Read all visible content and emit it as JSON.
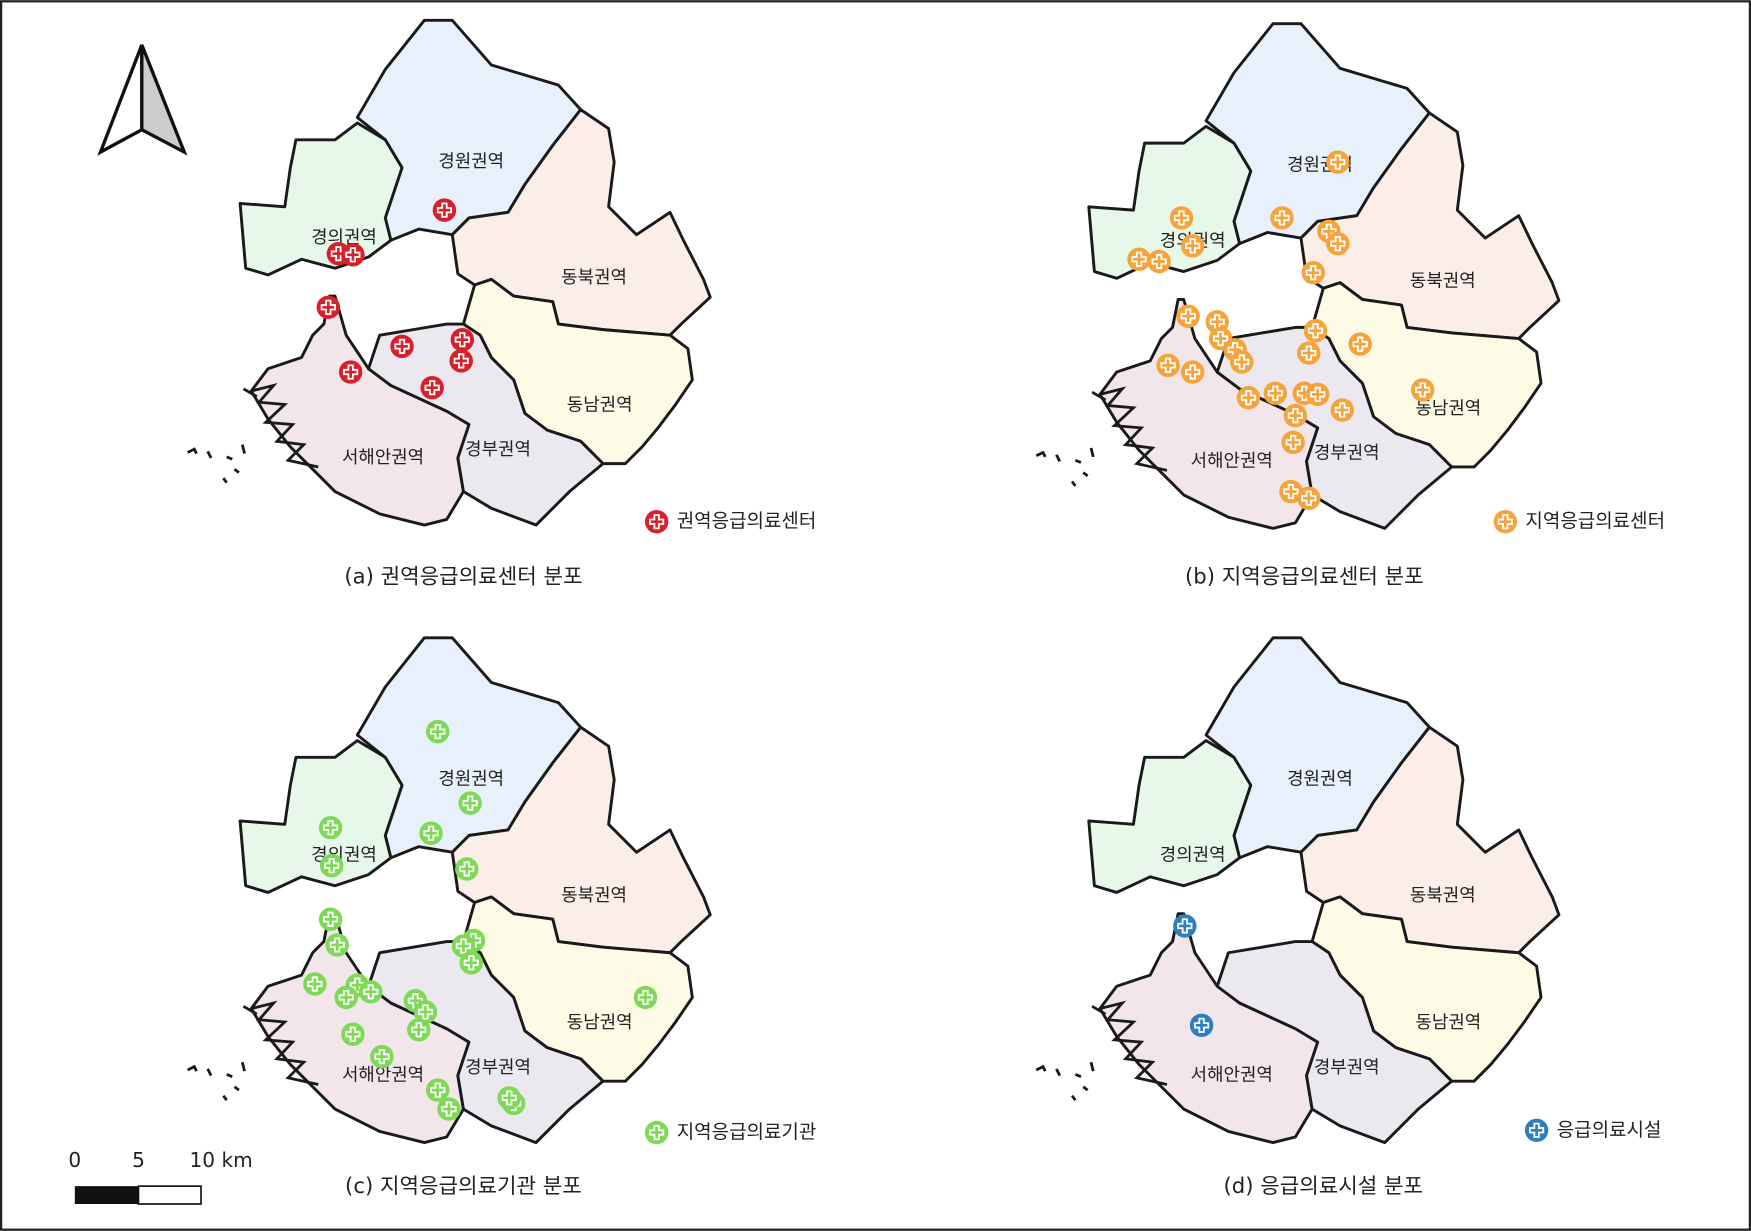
{
  "panels": [
    {
      "caption": "(a) 권역응급의료센터 분포",
      "legend": "권역응급의료센터",
      "color": "#d9202a"
    },
    {
      "caption": "(b) 지역응급의료센터 분포",
      "legend": "지역응급의료센터",
      "color": "#f5a33a"
    },
    {
      "caption": "(c) 지역응급의료기관 분포",
      "legend": "지역응급의료기관",
      "color": "#7ed957"
    },
    {
      "caption": "(d) 응급의료시설 분포",
      "legend": "응급의료시설",
      "color": "#2b7fc0"
    }
  ],
  "regions": [
    "경원권역",
    "경의권역",
    "동북권역",
    "동남권역",
    "서해안권역",
    "경부권역"
  ],
  "scale_bar": {
    "labels": [
      "0",
      "5",
      "10 km"
    ]
  }
}
